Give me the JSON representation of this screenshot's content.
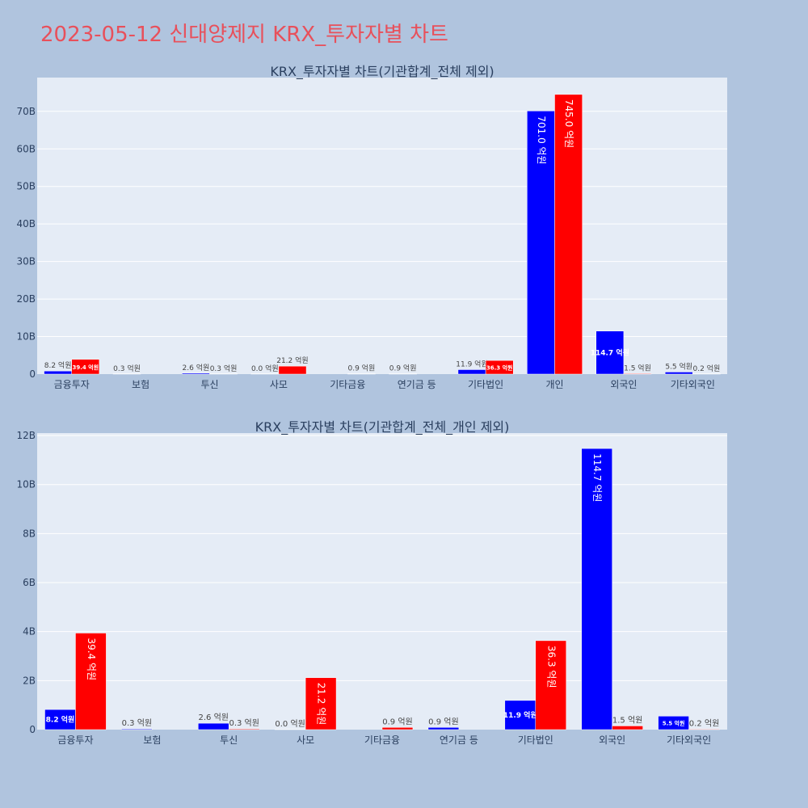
{
  "page": {
    "title": "2023-05-12 신대양제지 KRX_투자자별 차트"
  },
  "colors": {
    "background": "#b0c4de",
    "plot_bg": "#e5ecf6",
    "title": "#e8505b",
    "buy": "#0000ff",
    "sell": "#ff0000"
  },
  "chart_data": [
    {
      "type": "bar",
      "title": "KRX_투자자별 차트(기관합계_전체 제외)",
      "categories": [
        "금융투자",
        "보험",
        "투신",
        "사모",
        "기타금융",
        "연기금 등",
        "기타법인",
        "개인",
        "외국인",
        "기타외국인"
      ],
      "series": [
        {
          "color": "#0000ff",
          "values": [
            0.82,
            0.03,
            0.26,
            0.0,
            null,
            0.09,
            1.19,
            70.1,
            11.47,
            0.55
          ],
          "labels": [
            "8.2 억원",
            "0.3 억원",
            "2.6 억원",
            "0.0 억원",
            "",
            "0.9 억원",
            "11.9 억원",
            "701.0 억원",
            "114.7 억원",
            "5.5 억원"
          ]
        },
        {
          "color": "#ff0000",
          "values": [
            3.94,
            null,
            0.03,
            2.12,
            0.09,
            null,
            3.63,
            74.5,
            0.15,
            0.02
          ],
          "labels": [
            "39.4 억원",
            "",
            "0.3 억원",
            "21.2 억원",
            "0.9 억원",
            "",
            "36.3 억원",
            "745.0 억원",
            "1.5 억원",
            "0.2 억원"
          ]
        }
      ],
      "yticks": [
        "0",
        "10B",
        "20B",
        "30B",
        "40B",
        "50B",
        "60B",
        "70B"
      ],
      "ylim": [
        0,
        79
      ],
      "grid": true
    },
    {
      "type": "bar",
      "title": "KRX_투자자별 차트(기관합계_전체_개인 제외)",
      "categories": [
        "금융투자",
        "보험",
        "투신",
        "사모",
        "기타금융",
        "연기금 등",
        "기타법인",
        "외국인",
        "기타외국인"
      ],
      "series": [
        {
          "color": "#0000ff",
          "values": [
            0.82,
            0.03,
            0.26,
            0.0,
            null,
            0.09,
            1.19,
            11.47,
            0.55
          ],
          "labels": [
            "8.2 억원",
            "0.3 억원",
            "2.6 억원",
            "0.0 억원",
            "",
            "0.9 억원",
            "11.9 억원",
            "114.7 억원",
            "5.5 억원"
          ]
        },
        {
          "color": "#ff0000",
          "values": [
            3.94,
            null,
            0.03,
            2.12,
            0.09,
            null,
            3.63,
            0.15,
            0.02
          ],
          "labels": [
            "39.4 억원",
            "",
            "0.3 억원",
            "21.2 억원",
            "0.9 억원",
            "",
            "36.3 억원",
            "1.5 억원",
            "0.2 억원"
          ]
        }
      ],
      "yticks": [
        "0",
        "2B",
        "4B",
        "6B",
        "8B",
        "10B",
        "12B"
      ],
      "ylim": [
        0,
        12.1
      ],
      "grid": true
    }
  ]
}
